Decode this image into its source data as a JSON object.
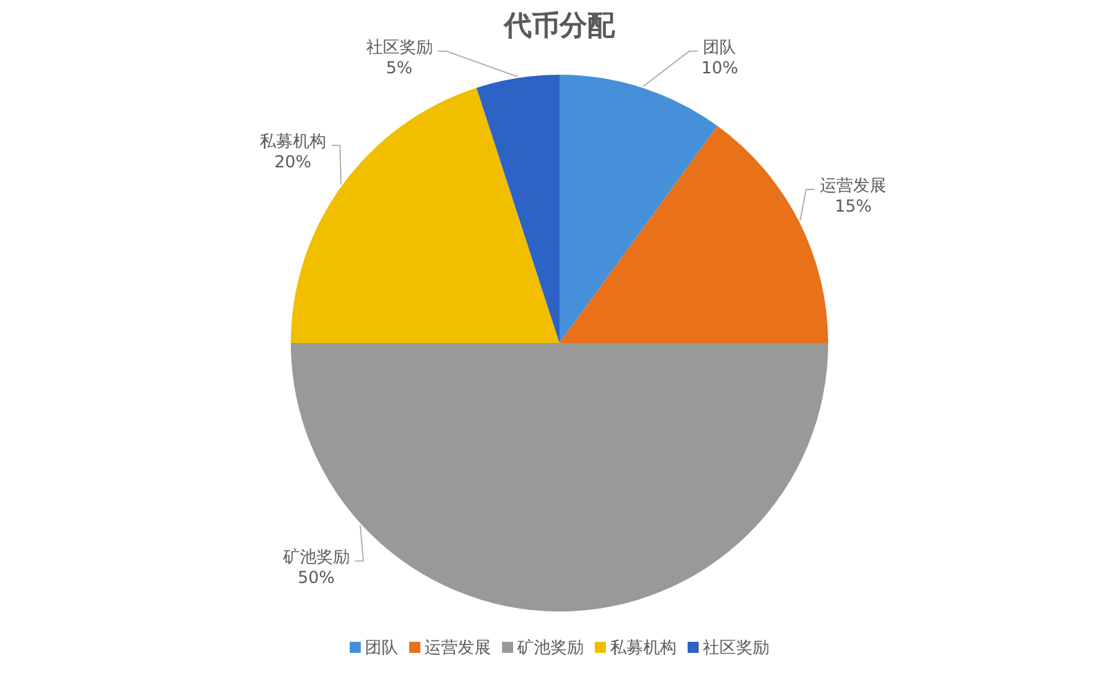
{
  "chart_data": {
    "type": "pie",
    "title": "代币分配",
    "categories": [
      "团队",
      "运营发展",
      "矿池奖励",
      "私募机构",
      "社区奖励"
    ],
    "values": [
      10,
      15,
      50,
      20,
      5
    ],
    "value_labels": [
      "10%",
      "15%",
      "50%",
      "20%",
      "5%"
    ],
    "colors": [
      "#4590d8",
      "#e8711a",
      "#999999",
      "#f2be00",
      "#2c63c4"
    ],
    "legend": "bottom"
  }
}
